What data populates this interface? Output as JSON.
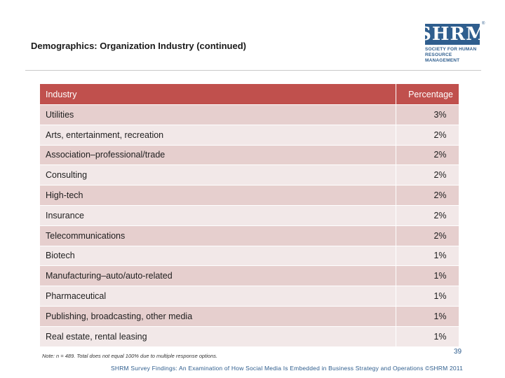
{
  "header": {
    "title": "Demographics: Organization Industry (continued)",
    "logo": {
      "mark": "SHRM",
      "trademark": "®",
      "line1": "SOCIETY FOR HUMAN",
      "line2": "RESOURCE MANAGEMENT",
      "color": "#2f5e8e"
    }
  },
  "table": {
    "headers": [
      "Industry",
      "Percentage"
    ],
    "header_color": "#c0504d",
    "rows": [
      {
        "industry": "Utilities",
        "percentage": "3%"
      },
      {
        "industry": "Arts, entertainment, recreation",
        "percentage": "2%"
      },
      {
        "industry": "Association–professional/trade",
        "percentage": "2%"
      },
      {
        "industry": "Consulting",
        "percentage": "2%"
      },
      {
        "industry": "High-tech",
        "percentage": "2%"
      },
      {
        "industry": "Insurance",
        "percentage": "2%"
      },
      {
        "industry": "Telecommunications",
        "percentage": "2%"
      },
      {
        "industry": "Biotech",
        "percentage": "1%"
      },
      {
        "industry": "Manufacturing–auto/auto-related",
        "percentage": "1%"
      },
      {
        "industry": "Pharmaceutical",
        "percentage": "1%"
      },
      {
        "industry": "Publishing, broadcasting, other media",
        "percentage": "1%"
      },
      {
        "industry": "Real estate, rental leasing",
        "percentage": "1%"
      }
    ]
  },
  "note": "Note: n = 489. Total does not equal 100% due to multiple response options.",
  "page_number": "39",
  "footer": "SHRM Survey Findings: An Examination of How Social Media Is Embedded in Business Strategy and Operations ©SHRM 2011"
}
